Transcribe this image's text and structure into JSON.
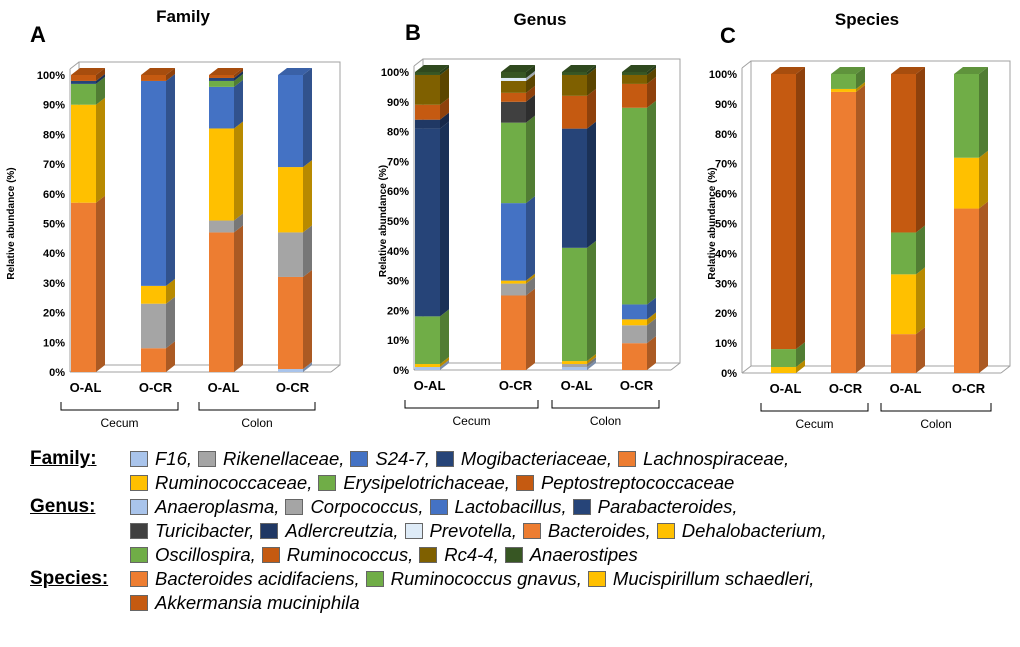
{
  "chart_data": [
    {
      "type": "bar",
      "stacked": true,
      "letter": "A",
      "title": "Family",
      "ylabel": "Relative abundance (%)",
      "yticks": [
        "0%",
        "10%",
        "20%",
        "30%",
        "40%",
        "50%",
        "60%",
        "70%",
        "80%",
        "90%",
        "100%"
      ],
      "ylim": [
        0,
        100
      ],
      "categories": [
        "O-AL",
        "O-CR",
        "O-AL",
        "O-CR"
      ],
      "groups": [
        {
          "label": "Cecum",
          "members": [
            0,
            1
          ]
        },
        {
          "label": "Colon",
          "members": [
            2,
            3
          ]
        }
      ],
      "series": [
        {
          "name": "F16",
          "color": "#a9c4eb",
          "values": [
            0,
            0,
            0,
            1
          ]
        },
        {
          "name": "Lachnospiraceae",
          "color": "#ed7d31",
          "values": [
            57,
            8,
            47,
            31
          ]
        },
        {
          "name": "Rikenellaceae",
          "color": "#a5a5a5",
          "values": [
            0,
            15,
            4,
            15
          ]
        },
        {
          "name": "Ruminococcaceae",
          "color": "#ffc000",
          "values": [
            33,
            6,
            31,
            22
          ]
        },
        {
          "name": "S24-7",
          "color": "#4472c4",
          "values": [
            0,
            69,
            14,
            31
          ]
        },
        {
          "name": "Erysipelotrichaceae",
          "color": "#70ad47",
          "values": [
            7,
            0,
            2,
            0
          ]
        },
        {
          "name": "Mogibacteriaceae",
          "color": "#264478",
          "values": [
            1,
            0,
            1,
            0
          ]
        },
        {
          "name": "Peptostreptococcaceae",
          "color": "#c55a11",
          "values": [
            2,
            2,
            1,
            0
          ]
        }
      ]
    },
    {
      "type": "bar",
      "stacked": true,
      "letter": "B",
      "title": "Genus",
      "ylabel": "Relative abundance (%)",
      "yticks": [
        "0%",
        "10%",
        "20%",
        "30%",
        "40%",
        "50%",
        "60%",
        "70%",
        "80%",
        "90%",
        "100%"
      ],
      "ylim": [
        0,
        100
      ],
      "categories": [
        "O-AL",
        "O-CR",
        "O-AL",
        "O-CR"
      ],
      "groups": [
        {
          "label": "Cecum",
          "members": [
            0,
            1
          ]
        },
        {
          "label": "Colon",
          "members": [
            2,
            3
          ]
        }
      ],
      "series": [
        {
          "name": "Anaeroplasma",
          "color": "#a9c4eb",
          "values": [
            1,
            0,
            1,
            0
          ]
        },
        {
          "name": "Bacteroides",
          "color": "#ed7d31",
          "values": [
            0,
            25,
            0,
            9
          ]
        },
        {
          "name": "Corpococcus",
          "color": "#a5a5a5",
          "values": [
            0,
            4,
            1,
            6
          ]
        },
        {
          "name": "Dehalobacterium",
          "color": "#ffc000",
          "values": [
            1,
            1,
            1,
            2
          ]
        },
        {
          "name": "Lactobacillus",
          "color": "#4472c4",
          "values": [
            0,
            26,
            0,
            5
          ]
        },
        {
          "name": "Oscillospira",
          "color": "#70ad47",
          "values": [
            16,
            27,
            38,
            66
          ]
        },
        {
          "name": "Parabacteroides",
          "color": "#264478",
          "values": [
            63,
            0,
            40,
            0
          ]
        },
        {
          "name": "Turicibacter",
          "color": "#404040",
          "values": [
            0,
            7,
            0,
            0
          ]
        },
        {
          "name": "Adlercreutzia",
          "color": "#203864",
          "values": [
            3,
            0,
            0,
            0
          ]
        },
        {
          "name": "Ruminococcus",
          "color": "#c55a11",
          "values": [
            5,
            3,
            11,
            8
          ]
        },
        {
          "name": "Rc4-4",
          "color": "#7f6000",
          "values": [
            10,
            4,
            7,
            3
          ]
        },
        {
          "name": "Prevotella",
          "color": "#deebf7",
          "values": [
            0,
            1,
            0,
            0
          ]
        },
        {
          "name": "Anaerostipes",
          "color": "#375623",
          "values": [
            1,
            2,
            1,
            1
          ]
        }
      ]
    },
    {
      "type": "bar",
      "stacked": true,
      "letter": "C",
      "title": "Species",
      "ylabel": "Relative abundance (%)",
      "yticks": [
        "0%",
        "10%",
        "20%",
        "30%",
        "40%",
        "50%",
        "60%",
        "70%",
        "80%",
        "90%",
        "100%"
      ],
      "ylim": [
        0,
        100
      ],
      "categories": [
        "O-AL",
        "O-CR",
        "O-AL",
        "O-CR"
      ],
      "groups": [
        {
          "label": "Cecum",
          "members": [
            0,
            1
          ]
        },
        {
          "label": "Colon",
          "members": [
            2,
            3
          ]
        }
      ],
      "series": [
        {
          "name": "Bacteroides acidifaciens",
          "color": "#ed7d31",
          "values": [
            0,
            94,
            13,
            55
          ]
        },
        {
          "name": "Mucispirillum schaedleri",
          "color": "#ffc000",
          "values": [
            2,
            1,
            20,
            17
          ]
        },
        {
          "name": "Ruminococcus gnavus",
          "color": "#70ad47",
          "values": [
            6,
            5,
            14,
            28
          ]
        },
        {
          "name": "Akkermansia muciniphila",
          "color": "#c55a11",
          "values": [
            92,
            0,
            53,
            0
          ]
        }
      ]
    }
  ],
  "legend": [
    {
      "heading": "Family",
      "lines": [
        [
          {
            "label": "F16,",
            "color": "#a9c4eb"
          },
          {
            "label": "Rikenellaceae,",
            "color": "#a5a5a5"
          },
          {
            "label": "S24-7,",
            "color": "#4472c4"
          },
          {
            "label": "Mogibacteriaceae,",
            "color": "#264478"
          },
          {
            "label": "Lachnospiraceae,",
            "color": "#ed7d31"
          }
        ],
        [
          {
            "label": "Ruminococcaceae,",
            "color": "#ffc000"
          },
          {
            "label": "Erysipelotrichaceae,",
            "color": "#70ad47"
          },
          {
            "label": "Peptostreptococcaceae",
            "color": "#c55a11"
          }
        ]
      ]
    },
    {
      "heading": "Genus",
      "lines": [
        [
          {
            "label": "Anaeroplasma,",
            "color": "#a9c4eb"
          },
          {
            "label": "Corpococcus,",
            "color": "#a5a5a5"
          },
          {
            "label": "Lactobacillus,",
            "color": "#4472c4"
          },
          {
            "label": "Parabacteroides,",
            "color": "#264478"
          }
        ],
        [
          {
            "label": "Turicibacter,",
            "color": "#404040"
          },
          {
            "label": "Adlercreutzia,",
            "color": "#203864"
          },
          {
            "label": "Prevotella,",
            "color": "#deebf7"
          },
          {
            "label": "Bacteroides,",
            "color": "#ed7d31"
          },
          {
            "label": "Dehalobacterium,",
            "color": "#ffc000"
          }
        ],
        [
          {
            "label": "Oscillospira,",
            "color": "#70ad47"
          },
          {
            "label": "Ruminococcus,",
            "color": "#c55a11"
          },
          {
            "label": "Rc4-4,",
            "color": "#7f6000"
          },
          {
            "label": "Anaerostipes",
            "color": "#375623"
          }
        ]
      ]
    },
    {
      "heading": "Species",
      "lines": [
        [
          {
            "label": "Bacteroides acidifaciens,",
            "color": "#ed7d31"
          },
          {
            "label": "Ruminococcus gnavus,",
            "color": "#70ad47"
          },
          {
            "label": "Mucispirillum schaedleri,",
            "color": "#ffc000"
          }
        ],
        [
          {
            "label": "Akkermansia muciniphila",
            "color": "#c55a11"
          }
        ]
      ]
    }
  ]
}
